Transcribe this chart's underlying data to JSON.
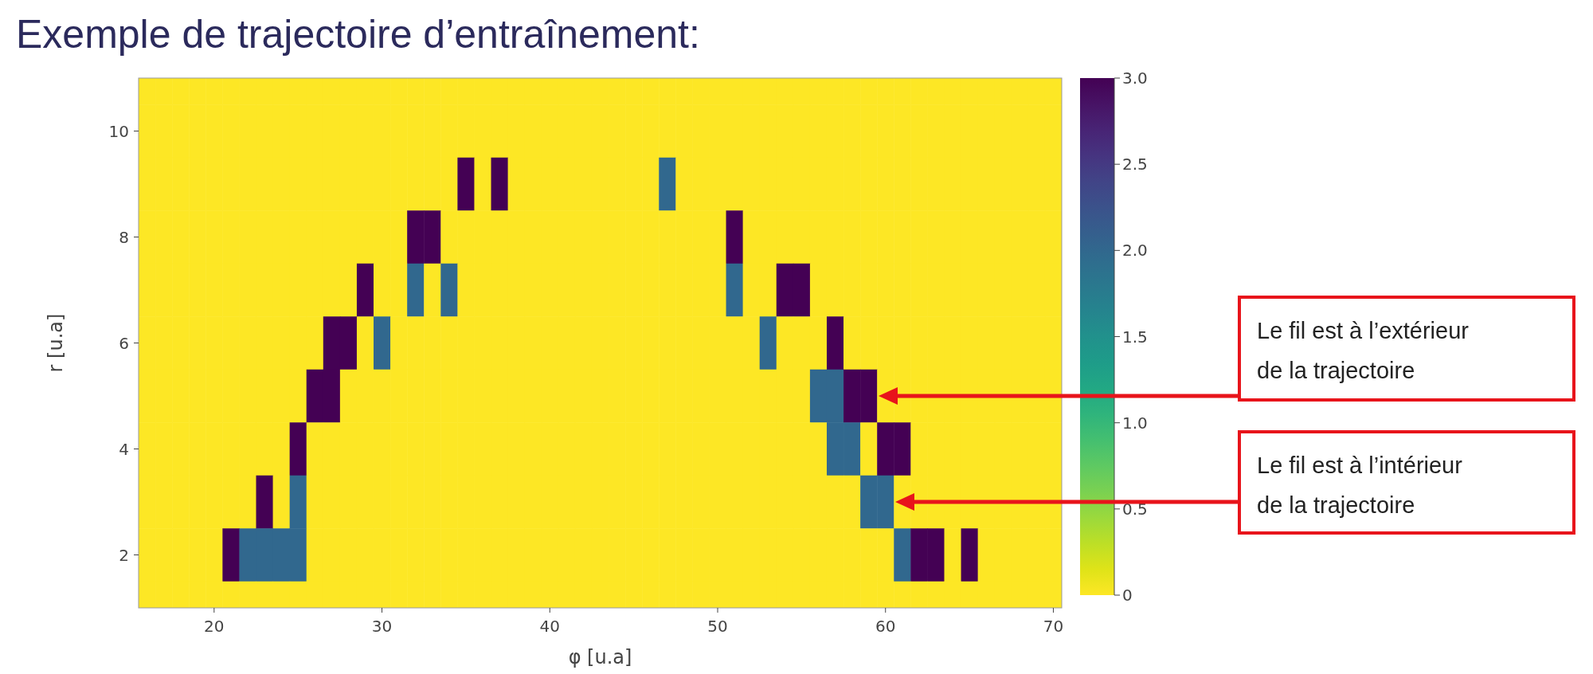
{
  "chart_data": {
    "type": "heatmap",
    "title": "Exemple de trajectoire d’entraînement:",
    "xlabel": "φ [u.a]",
    "ylabel": "r [u.a]",
    "x": [
      16,
      17,
      18,
      19,
      20,
      21,
      22,
      23,
      24,
      25,
      26,
      27,
      28,
      29,
      30,
      31,
      32,
      33,
      34,
      35,
      36,
      37,
      38,
      39,
      40,
      41,
      42,
      43,
      44,
      45,
      46,
      47,
      48,
      49,
      50,
      51,
      52,
      53,
      54,
      55,
      56,
      57,
      58,
      59,
      60,
      61,
      62,
      63,
      64,
      65,
      66,
      67,
      68,
      69,
      70
    ],
    "y": [
      11,
      10,
      9,
      8,
      7,
      6,
      5,
      4,
      3,
      2,
      1
    ],
    "cells": [
      [
        0,
        0,
        0,
        0,
        0,
        0,
        0,
        0,
        0,
        0,
        0,
        0,
        0,
        0,
        0,
        0,
        0,
        0,
        0,
        0,
        0,
        0,
        0,
        0,
        0,
        0,
        0,
        0,
        0,
        0,
        0,
        0,
        0,
        0,
        0,
        0,
        0,
        0,
        0,
        0,
        0,
        0,
        0,
        0,
        0,
        0,
        0,
        0,
        0,
        0,
        0,
        0,
        0,
        0,
        0
      ],
      [
        0,
        0,
        0,
        0,
        0,
        0,
        0,
        0,
        0,
        0,
        0,
        0,
        0,
        0,
        0,
        0,
        0,
        0,
        0,
        0,
        0,
        0,
        0,
        0,
        0,
        0,
        0,
        0,
        0,
        0,
        0,
        0,
        0,
        0,
        0,
        0,
        0,
        0,
        0,
        0,
        0,
        0,
        0,
        0,
        0,
        0,
        0,
        0,
        0,
        0,
        0,
        0,
        0,
        0,
        0
      ],
      [
        0,
        0,
        0,
        0,
        0,
        0,
        0,
        0,
        0,
        0,
        0,
        0,
        0,
        0,
        0,
        0,
        0,
        0,
        0,
        3,
        0,
        3,
        0,
        0,
        0,
        0,
        0,
        0,
        0,
        0,
        0,
        2,
        0,
        0,
        0,
        0,
        0,
        0,
        0,
        0,
        0,
        0,
        0,
        0,
        0,
        0,
        0,
        0,
        0,
        0,
        0,
        0,
        0,
        0,
        0
      ],
      [
        0,
        0,
        0,
        0,
        0,
        0,
        0,
        0,
        0,
        0,
        0,
        0,
        0,
        0,
        0,
        0,
        3,
        3,
        0,
        0,
        0,
        0,
        0,
        0,
        0,
        0,
        0,
        0,
        0,
        0,
        0,
        0,
        0,
        0,
        0,
        3,
        0,
        0,
        0,
        0,
        0,
        0,
        0,
        0,
        0,
        0,
        0,
        0,
        0,
        0,
        0,
        0,
        0,
        0,
        0
      ],
      [
        0,
        0,
        0,
        0,
        0,
        0,
        0,
        0,
        0,
        0,
        0,
        0,
        0,
        3,
        0,
        0,
        2,
        0,
        2,
        0,
        0,
        0,
        0,
        0,
        0,
        0,
        0,
        0,
        0,
        0,
        0,
        0,
        0,
        0,
        0,
        2,
        0,
        0,
        3,
        3,
        0,
        0,
        0,
        0,
        0,
        0,
        0,
        0,
        0,
        0,
        0,
        0,
        0,
        0,
        0
      ],
      [
        0,
        0,
        0,
        0,
        0,
        0,
        0,
        0,
        0,
        0,
        0,
        3,
        3,
        0,
        2,
        0,
        0,
        0,
        0,
        0,
        0,
        0,
        0,
        0,
        0,
        0,
        0,
        0,
        0,
        0,
        0,
        0,
        0,
        0,
        0,
        0,
        0,
        2,
        0,
        0,
        0,
        3,
        0,
        0,
        0,
        0,
        0,
        0,
        0,
        0,
        0,
        0,
        0,
        0,
        0
      ],
      [
        0,
        0,
        0,
        0,
        0,
        0,
        0,
        0,
        0,
        0,
        3,
        3,
        0,
        0,
        0,
        0,
        0,
        0,
        0,
        0,
        0,
        0,
        0,
        0,
        0,
        0,
        0,
        0,
        0,
        0,
        0,
        0,
        0,
        0,
        0,
        0,
        0,
        0,
        0,
        0,
        2,
        2,
        3,
        3,
        0,
        0,
        0,
        0,
        0,
        0,
        0,
        0,
        0,
        0,
        0
      ],
      [
        0,
        0,
        0,
        0,
        0,
        0,
        0,
        0,
        0,
        3,
        0,
        0,
        0,
        0,
        0,
        0,
        0,
        0,
        0,
        0,
        0,
        0,
        0,
        0,
        0,
        0,
        0,
        0,
        0,
        0,
        0,
        0,
        0,
        0,
        0,
        0,
        0,
        0,
        0,
        0,
        0,
        2,
        2,
        0,
        3,
        3,
        0,
        0,
        0,
        0,
        0,
        0,
        0,
        0,
        0
      ],
      [
        0,
        0,
        0,
        0,
        0,
        0,
        0,
        3,
        0,
        2,
        0,
        0,
        0,
        0,
        0,
        0,
        0,
        0,
        0,
        0,
        0,
        0,
        0,
        0,
        0,
        0,
        0,
        0,
        0,
        0,
        0,
        0,
        0,
        0,
        0,
        0,
        0,
        0,
        0,
        0,
        0,
        0,
        0,
        2,
        2,
        0,
        0,
        0,
        0,
        0,
        0,
        0,
        0,
        0,
        0
      ],
      [
        0,
        0,
        0,
        0,
        0,
        3,
        2,
        2,
        2,
        2,
        0,
        0,
        0,
        0,
        0,
        0,
        0,
        0,
        0,
        0,
        0,
        0,
        0,
        0,
        0,
        0,
        0,
        0,
        0,
        0,
        0,
        0,
        0,
        0,
        0,
        0,
        0,
        0,
        0,
        0,
        0,
        0,
        0,
        0,
        0,
        2,
        3,
        3,
        0,
        3,
        0,
        0,
        0,
        0,
        0
      ],
      [
        0,
        0,
        0,
        0,
        0,
        0,
        0,
        0,
        0,
        0,
        0,
        0,
        0,
        0,
        0,
        0,
        0,
        0,
        0,
        0,
        0,
        0,
        0,
        0,
        0,
        0,
        0,
        0,
        0,
        0,
        0,
        0,
        0,
        0,
        0,
        0,
        0,
        0,
        0,
        0,
        0,
        0,
        0,
        0,
        0,
        0,
        0,
        0,
        0,
        0,
        0,
        0,
        0,
        0,
        0
      ]
    ],
    "xlim": [
      15.5,
      70.5
    ],
    "ylim": [
      1,
      11
    ],
    "xticks": [
      20,
      30,
      40,
      50,
      60,
      70
    ],
    "yticks": [
      2,
      4,
      6,
      8,
      10
    ],
    "clim": [
      0,
      3
    ],
    "cticks": [
      0,
      0.5,
      {
        "value": 1,
        "label": "1.0"
      },
      1.5,
      {
        "value": 2,
        "label": "2.0"
      },
      2.5,
      {
        "value": 3,
        "label": "3.0"
      }
    ],
    "annotations": [
      "Le fil est à l’extérieur de la trajectoire",
      "Le fil est à l’intérieur de la trajectoire"
    ]
  }
}
